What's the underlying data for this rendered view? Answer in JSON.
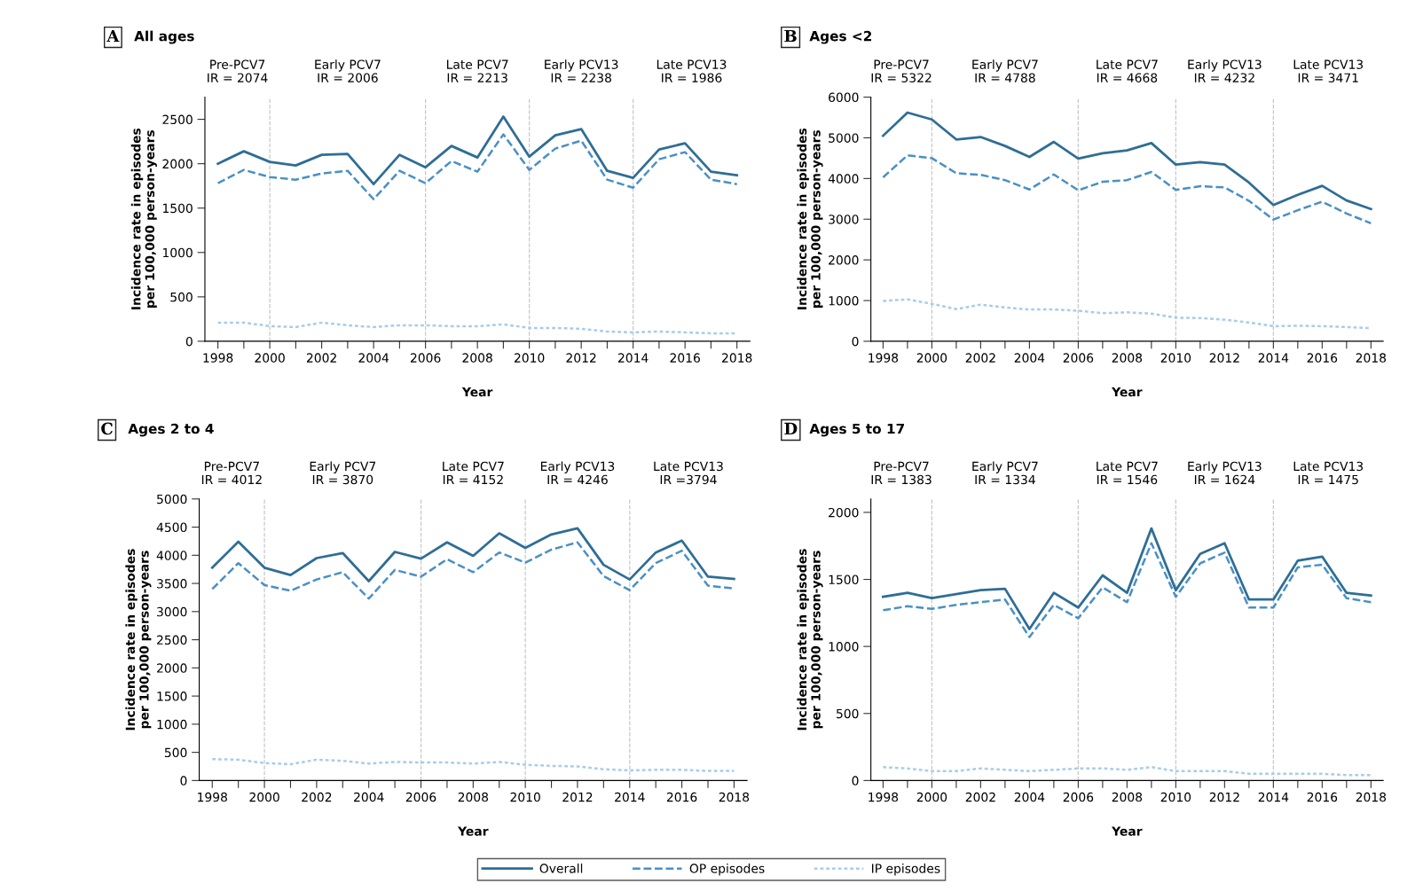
{
  "chart_data": [
    {
      "type": "line",
      "title": "All ages",
      "xlabel": "Year",
      "ylabel": "Incidence rate in episodes\nper 100,000 person-years",
      "annotations": [
        "A",
        "Pre-PCV7\nIR = 2074",
        "Early PCV7\nIR = 2006",
        "Late PCV7\nIR = 2213",
        "Early PCV13\nIR = 2238",
        "Late PCV13\nIR = 1986"
      ],
      "x": [
        1998,
        1999,
        2000,
        2001,
        2002,
        2003,
        2004,
        2005,
        2006,
        2007,
        2008,
        2009,
        2010,
        2011,
        2012,
        2013,
        2014,
        2015,
        2016,
        2017,
        2018
      ],
      "series": [
        {
          "name": "Overall",
          "color": "#2e6e96",
          "line_style": "solid",
          "values": [
            2000,
            2140,
            2020,
            1980,
            2100,
            2110,
            1770,
            2100,
            1960,
            2200,
            2070,
            2530,
            2080,
            2320,
            2390,
            1920,
            1840,
            2160,
            2230,
            1910,
            1870
          ]
        },
        {
          "name": "OP episodes",
          "color": "#4a90c4",
          "line_style": "dashed",
          "values": [
            1780,
            1930,
            1850,
            1820,
            1890,
            1920,
            1600,
            1920,
            1780,
            2030,
            1910,
            2330,
            1930,
            2170,
            2260,
            1820,
            1730,
            2050,
            2130,
            1820,
            1770
          ]
        },
        {
          "name": "IP episodes",
          "color": "#a8cde8",
          "line_style": "dotted",
          "values": [
            210,
            210,
            170,
            160,
            210,
            180,
            160,
            180,
            180,
            170,
            170,
            190,
            150,
            150,
            140,
            110,
            100,
            110,
            100,
            90,
            90
          ]
        }
      ],
      "ref_lines": [
        {
          "axis": "x",
          "value": 2000,
          "color": "#c8c8c8",
          "line_style": "dashed"
        },
        {
          "axis": "x",
          "value": 2006,
          "color": "#c8c8c8",
          "line_style": "dashed"
        },
        {
          "axis": "x",
          "value": 2010,
          "color": "#c8c8c8",
          "line_style": "dashed"
        },
        {
          "axis": "x",
          "value": 2014,
          "color": "#c8c8c8",
          "line_style": "dashed"
        }
      ],
      "xlim": [
        1997.5,
        2018.5
      ],
      "xticks": [
        1998,
        {
          "value": 1999,
          "label": null
        },
        2000,
        {
          "value": 2001,
          "label": null
        },
        2002,
        {
          "value": 2003,
          "label": null
        },
        2004,
        {
          "value": 2005,
          "label": null
        },
        2006,
        {
          "value": 2007,
          "label": null
        },
        2008,
        {
          "value": 2009,
          "label": null
        },
        2010,
        {
          "value": 2011,
          "label": null
        },
        2012,
        {
          "value": 2013,
          "label": null
        },
        2014,
        {
          "value": 2015,
          "label": null
        },
        2016,
        {
          "value": 2017,
          "label": null
        },
        2018
      ],
      "ylim": [
        0,
        2750
      ],
      "yticks": [
        0,
        500,
        1000,
        1500,
        2000,
        2500
      ],
      "grid": false,
      "legend": "bottom",
      "marker": "none"
    },
    {
      "type": "line",
      "title": "Ages <2",
      "xlabel": "Year",
      "ylabel": "Incidence rate in episodes\nper 100,000 person-years",
      "annotations": [
        "B",
        "Pre-PCV7\nIR = 5322",
        "Early PCV7\nIR = 4788",
        "Late PCV7\nIR = 4668",
        "Early PCV13\nIR = 4232",
        "Late PCV13\nIR = 3471"
      ],
      "x": [
        1998,
        1999,
        2000,
        2001,
        2002,
        2003,
        2004,
        2005,
        2006,
        2007,
        2008,
        2009,
        2010,
        2011,
        2012,
        2013,
        2014,
        2015,
        2016,
        2017,
        2018
      ],
      "series": [
        {
          "color": "#2e6e96",
          "line_style": "solid",
          "values": [
            5050,
            5620,
            5450,
            4960,
            5020,
            4800,
            4530,
            4900,
            4490,
            4620,
            4690,
            4870,
            4340,
            4400,
            4340,
            3900,
            3350,
            3600,
            3820,
            3460,
            3250
          ]
        },
        {
          "color": "#4a90c4",
          "line_style": "dashed",
          "values": [
            4030,
            4570,
            4500,
            4130,
            4090,
            3960,
            3730,
            4100,
            3710,
            3920,
            3960,
            4160,
            3720,
            3810,
            3780,
            3450,
            2990,
            3220,
            3430,
            3140,
            2900
          ]
        },
        {
          "color": "#a8cde8",
          "line_style": "dotted",
          "values": [
            990,
            1030,
            920,
            790,
            900,
            830,
            780,
            780,
            750,
            690,
            710,
            680,
            580,
            570,
            530,
            460,
            370,
            380,
            370,
            350,
            320
          ]
        }
      ],
      "ref_lines": [
        {
          "axis": "x",
          "value": 2000,
          "color": "#c8c8c8",
          "line_style": "dashed"
        },
        {
          "axis": "x",
          "value": 2006,
          "color": "#c8c8c8",
          "line_style": "dashed"
        },
        {
          "axis": "x",
          "value": 2010,
          "color": "#c8c8c8",
          "line_style": "dashed"
        },
        {
          "axis": "x",
          "value": 2014,
          "color": "#c8c8c8",
          "line_style": "dashed"
        }
      ],
      "xlim": [
        1997.5,
        2018.5
      ],
      "xticks": [
        1998,
        {
          "value": 1999,
          "label": null
        },
        2000,
        {
          "value": 2001,
          "label": null
        },
        2002,
        {
          "value": 2003,
          "label": null
        },
        2004,
        {
          "value": 2005,
          "label": null
        },
        2006,
        {
          "value": 2007,
          "label": null
        },
        2008,
        {
          "value": 2009,
          "label": null
        },
        2010,
        {
          "value": 2011,
          "label": null
        },
        2012,
        {
          "value": 2013,
          "label": null
        },
        2014,
        {
          "value": 2015,
          "label": null
        },
        2016,
        {
          "value": 2017,
          "label": null
        },
        2018
      ],
      "ylim": [
        0,
        6000
      ],
      "yticks": [
        0,
        1000,
        2000,
        3000,
        4000,
        5000,
        6000
      ],
      "grid": false,
      "legend": false,
      "marker": "none"
    },
    {
      "type": "line",
      "title": "Ages 2 to 4",
      "xlabel": "Year",
      "ylabel": "Incidence rate in episodes\nper 100,000 person-years",
      "annotations": [
        "C",
        "Pre-PCV7\nIR = 4012",
        "Early PCV7\nIR = 3870",
        "Late PCV7\nIR = 4152",
        "Early PCV13\nIR = 4246",
        "Late PCV13\nIR =3794"
      ],
      "x": [
        1998,
        1999,
        2000,
        2001,
        2002,
        2003,
        2004,
        2005,
        2006,
        2007,
        2008,
        2009,
        2010,
        2011,
        2012,
        2013,
        2014,
        2015,
        2016,
        2017,
        2018
      ],
      "series": [
        {
          "color": "#2e6e96",
          "line_style": "solid",
          "values": [
            3780,
            4240,
            3780,
            3650,
            3950,
            4040,
            3540,
            4060,
            3940,
            4230,
            3990,
            4390,
            4130,
            4370,
            4480,
            3830,
            3570,
            4050,
            4260,
            3620,
            3580
          ]
        },
        {
          "color": "#4a90c4",
          "line_style": "dashed",
          "values": [
            3400,
            3860,
            3470,
            3370,
            3570,
            3700,
            3230,
            3740,
            3620,
            3930,
            3700,
            4050,
            3870,
            4100,
            4230,
            3630,
            3380,
            3860,
            4080,
            3460,
            3410
          ]
        },
        {
          "color": "#a8cde8",
          "line_style": "dotted",
          "values": [
            380,
            370,
            310,
            290,
            370,
            350,
            300,
            330,
            320,
            320,
            300,
            330,
            280,
            260,
            250,
            200,
            180,
            190,
            190,
            170,
            170
          ]
        }
      ],
      "ref_lines": [
        {
          "axis": "x",
          "value": 2000,
          "color": "#c8c8c8",
          "line_style": "dashed"
        },
        {
          "axis": "x",
          "value": 2006,
          "color": "#c8c8c8",
          "line_style": "dashed"
        },
        {
          "axis": "x",
          "value": 2010,
          "color": "#c8c8c8",
          "line_style": "dashed"
        },
        {
          "axis": "x",
          "value": 2014,
          "color": "#c8c8c8",
          "line_style": "dashed"
        }
      ],
      "xlim": [
        1997.5,
        2018.5
      ],
      "xticks": [
        1998,
        {
          "value": 1999,
          "label": null
        },
        2000,
        {
          "value": 2001,
          "label": null
        },
        2002,
        {
          "value": 2003,
          "label": null
        },
        2004,
        {
          "value": 2005,
          "label": null
        },
        2006,
        {
          "value": 2007,
          "label": null
        },
        2008,
        {
          "value": 2009,
          "label": null
        },
        2010,
        {
          "value": 2011,
          "label": null
        },
        2012,
        {
          "value": 2013,
          "label": null
        },
        2014,
        {
          "value": 2015,
          "label": null
        },
        2016,
        {
          "value": 2017,
          "label": null
        },
        2018
      ],
      "ylim": [
        0,
        5000
      ],
      "yticks": [
        0,
        500,
        1000,
        1500,
        2000,
        2500,
        3000,
        3500,
        4000,
        4500,
        5000
      ],
      "grid": false,
      "legend": false,
      "marker": "none"
    },
    {
      "type": "line",
      "title": "Ages 5 to 17",
      "xlabel": "Year",
      "ylabel": "Incidence rate in episodes\nper 100,000 person-years",
      "annotations": [
        "D",
        "Pre-PCV7\nIR = 1383",
        "Early PCV7\nIR = 1334",
        "Late PCV7\nIR = 1546",
        "Early PCV13\nIR = 1624",
        "Late PCV13\nIR = 1475"
      ],
      "x": [
        1998,
        1999,
        2000,
        2001,
        2002,
        2003,
        2004,
        2005,
        2006,
        2007,
        2008,
        2009,
        2010,
        2011,
        2012,
        2013,
        2014,
        2015,
        2016,
        2017,
        2018
      ],
      "series": [
        {
          "color": "#2e6e96",
          "line_style": "solid",
          "values": [
            1370,
            1400,
            1360,
            1390,
            1420,
            1430,
            1130,
            1400,
            1290,
            1530,
            1400,
            1880,
            1420,
            1690,
            1770,
            1350,
            1350,
            1640,
            1670,
            1400,
            1380
          ]
        },
        {
          "color": "#4a90c4",
          "line_style": "dashed",
          "values": [
            1270,
            1300,
            1280,
            1310,
            1330,
            1350,
            1070,
            1310,
            1210,
            1440,
            1330,
            1770,
            1370,
            1620,
            1700,
            1290,
            1290,
            1590,
            1610,
            1360,
            1330
          ]
        },
        {
          "color": "#a8cde8",
          "line_style": "dotted",
          "values": [
            100,
            90,
            70,
            70,
            90,
            80,
            70,
            80,
            90,
            90,
            80,
            100,
            70,
            70,
            70,
            50,
            50,
            50,
            50,
            40,
            40
          ]
        }
      ],
      "ref_lines": [
        {
          "axis": "x",
          "value": 2000,
          "color": "#c8c8c8",
          "line_style": "dashed"
        },
        {
          "axis": "x",
          "value": 2006,
          "color": "#c8c8c8",
          "line_style": "dashed"
        },
        {
          "axis": "x",
          "value": 2010,
          "color": "#c8c8c8",
          "line_style": "dashed"
        },
        {
          "axis": "x",
          "value": 2014,
          "color": "#c8c8c8",
          "line_style": "dashed"
        }
      ],
      "xlim": [
        1997.5,
        2018.5
      ],
      "xticks": [
        1998,
        {
          "value": 1999,
          "label": null
        },
        2000,
        {
          "value": 2001,
          "label": null
        },
        2002,
        {
          "value": 2003,
          "label": null
        },
        2004,
        {
          "value": 2005,
          "label": null
        },
        2006,
        {
          "value": 2007,
          "label": null
        },
        2008,
        {
          "value": 2009,
          "label": null
        },
        2010,
        {
          "value": 2011,
          "label": null
        },
        2012,
        {
          "value": 2013,
          "label": null
        },
        2014,
        {
          "value": 2015,
          "label": null
        },
        2016,
        {
          "value": 2017,
          "label": null
        },
        2018
      ],
      "ylim": [
        0,
        2100
      ],
      "yticks": [
        0,
        500,
        1000,
        1500,
        2000
      ],
      "grid": false,
      "legend": false,
      "marker": "none"
    }
  ]
}
